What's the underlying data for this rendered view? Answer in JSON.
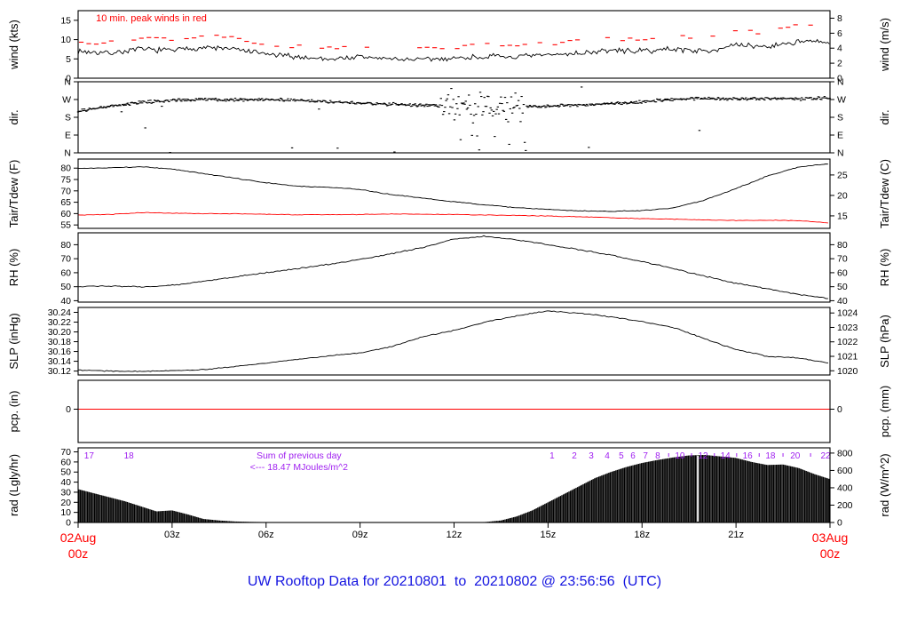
{
  "title": "UW Rooftop Data for 20210801  to  20210802 @ 23:56:56  (UTC)",
  "colors": {
    "line": "#000000",
    "red": "#ff0000",
    "purple": "#a020f0",
    "title_blue": "#1414e0",
    "gap_line": "#ffffff"
  },
  "chart_data": {
    "type": "line",
    "description": "Multi-panel meteogram, x axis = hours UTC from 02Aug 00z to 03Aug 00z",
    "x_axis": {
      "range_hours": [
        0,
        24
      ],
      "ticks": [
        {
          "t": 0,
          "lines": [
            "02Aug",
            "00z"
          ],
          "color": "#ff0000"
        },
        {
          "t": 3,
          "lines": [
            "03z"
          ]
        },
        {
          "t": 6,
          "lines": [
            "06z"
          ]
        },
        {
          "t": 9,
          "lines": [
            "09z"
          ]
        },
        {
          "t": 12,
          "lines": [
            "12z"
          ]
        },
        {
          "t": 15,
          "lines": [
            "15z"
          ]
        },
        {
          "t": 18,
          "lines": [
            "18z"
          ]
        },
        {
          "t": 21,
          "lines": [
            "21z"
          ]
        },
        {
          "t": 24,
          "lines": [
            "03Aug",
            "00z"
          ],
          "color": "#ff0000"
        }
      ]
    },
    "panels": [
      {
        "id": "wind",
        "label_left": "wind (kts)",
        "label_right": "wind (m/s)",
        "ylim": [
          0,
          17.5
        ],
        "yticks_left": [
          {
            "v": 0,
            "label": "0"
          },
          {
            "v": 5,
            "label": "5"
          },
          {
            "v": 10,
            "label": "10"
          },
          {
            "v": 15,
            "label": "15"
          }
        ],
        "yticks_right": [
          {
            "v": 0,
            "label": "0"
          },
          {
            "v": 3.89,
            "label": "2"
          },
          {
            "v": 7.78,
            "label": "4"
          },
          {
            "v": 11.66,
            "label": "6"
          },
          {
            "v": 15.55,
            "label": "8"
          }
        ],
        "annotation": {
          "text": "10 min. peak winds in red",
          "color": "#ff0000",
          "t": 0.57
        },
        "series": [
          {
            "name": "wind_speed_kts",
            "type": "noisy-line",
            "color": "#000000",
            "width": 0.9,
            "seed": 7,
            "noise": 0.85,
            "sample": 0.055,
            "dt": 1,
            "values": [
              7.0,
              6.5,
              7.5,
              7.2,
              8.0,
              7.5,
              6.2,
              5.5,
              5.0,
              5.5,
              5.0,
              4.8,
              5.2,
              5.6,
              5.5,
              6.0,
              6.5,
              7.2,
              7.0,
              7.6,
              7.0,
              8.5,
              8.2,
              9.5,
              9.2
            ]
          },
          {
            "name": "peak_wind_kts",
            "type": "dash-scatter",
            "color": "#ff0000",
            "seed": 13,
            "noise": 0.5,
            "sample": 0.24,
            "prob": 0.62,
            "dt": 1,
            "values": [
              9.5,
              9.2,
              10.5,
              10.2,
              11.2,
              10.5,
              8.8,
              8.2,
              7.8,
              8.2,
              7.8,
              7.6,
              8.0,
              8.6,
              8.5,
              9.0,
              9.6,
              10.2,
              10.0,
              10.8,
              10.5,
              12.0,
              11.8,
              13.8,
              13.0
            ]
          }
        ]
      },
      {
        "id": "dir",
        "label_left": "dir.",
        "label_right": "dir.",
        "ylim": [
          0,
          360
        ],
        "yticks_left": [
          {
            "v": 360,
            "label": "N"
          },
          {
            "v": 270,
            "label": "W"
          },
          {
            "v": 180,
            "label": "S"
          },
          {
            "v": 90,
            "label": "E"
          },
          {
            "v": 0,
            "label": "N"
          }
        ],
        "yticks_right": [
          {
            "v": 360,
            "label": "N"
          },
          {
            "v": 270,
            "label": "W"
          },
          {
            "v": 180,
            "label": "S"
          },
          {
            "v": 90,
            "label": "E"
          },
          {
            "v": 0,
            "label": "N"
          }
        ],
        "series": [
          {
            "name": "wind_direction_deg",
            "type": "point-scatter",
            "color": "#000000",
            "seed": 29,
            "noise": 9,
            "sample": 0.033,
            "outlier_prob": 0.02,
            "dt": 1,
            "windows": [
              {
                "t0": 11.55,
                "t1": 14.35,
                "noise": 80,
                "outlier_prob": 0.28
              }
            ],
            "values": [
              212,
              235,
              255,
              266,
              270,
              268,
              271,
              266,
              258,
              252,
              246,
              240,
              236,
              238,
              232,
              236,
              242,
              247,
              258,
              272,
              277,
              272,
              275,
              272,
              279
            ]
          }
        ]
      },
      {
        "id": "tair_tdew",
        "label_left": "Tair/Tdew (F)",
        "label_right": "Tair/Tdew (C)",
        "ylim": [
          53.5,
          84
        ],
        "yticks_left": [
          {
            "v": 55,
            "label": "55"
          },
          {
            "v": 60,
            "label": "60"
          },
          {
            "v": 65,
            "label": "65"
          },
          {
            "v": 70,
            "label": "70"
          },
          {
            "v": 75,
            "label": "75"
          },
          {
            "v": 80,
            "label": "80"
          }
        ],
        "yticks_right": [
          {
            "v": 59,
            "label": "15"
          },
          {
            "v": 68,
            "label": "20"
          },
          {
            "v": 77,
            "label": "25"
          }
        ],
        "series": [
          {
            "name": "tair_f",
            "type": "noisy-line",
            "color": "#000000",
            "width": 0.9,
            "seed": 41,
            "noise": 0.22,
            "sample": 0.07,
            "dt": 1,
            "values": [
              79.8,
              80.2,
              80.6,
              79.6,
              77.6,
              75.6,
              73.6,
              72.0,
              71.6,
              70.6,
              68.4,
              66.8,
              65.2,
              63.8,
              62.6,
              61.8,
              61.2,
              61.0,
              61.3,
              62.5,
              66.0,
              71.0,
              76.5,
              80.5,
              82.0
            ]
          },
          {
            "name": "tdew_f",
            "type": "noisy-line",
            "color": "#ff0000",
            "width": 0.9,
            "seed": 43,
            "noise": 0.16,
            "sample": 0.07,
            "dt": 1,
            "values": [
              59.4,
              59.6,
              60.4,
              60.2,
              60.0,
              59.9,
              59.7,
              59.5,
              59.5,
              59.6,
              59.8,
              59.7,
              59.6,
              59.4,
              59.2,
              58.9,
              58.6,
              58.2,
              57.8,
              57.5,
              57.2,
              57.0,
              57.1,
              56.9,
              55.9
            ]
          }
        ]
      },
      {
        "id": "rh",
        "label_left": "RH (%)",
        "label_right": "RH (%)",
        "ylim": [
          39,
          88.5
        ],
        "yticks_left": [
          {
            "v": 40,
            "label": "40"
          },
          {
            "v": 50,
            "label": "50"
          },
          {
            "v": 60,
            "label": "60"
          },
          {
            "v": 70,
            "label": "70"
          },
          {
            "v": 80,
            "label": "80"
          }
        ],
        "yticks_right": [
          {
            "v": 40,
            "label": "40"
          },
          {
            "v": 50,
            "label": "50"
          },
          {
            "v": 60,
            "label": "60"
          },
          {
            "v": 70,
            "label": "70"
          },
          {
            "v": 80,
            "label": "80"
          }
        ],
        "series": [
          {
            "name": "relative_humidity_pct",
            "type": "noisy-line",
            "color": "#000000",
            "width": 0.9,
            "seed": 53,
            "noise": 0.5,
            "sample": 0.07,
            "dt": 1,
            "values": [
              50,
              50.5,
              49.8,
              51,
              54,
              57,
              60,
              63,
              66,
              69.5,
              73.5,
              78,
              84,
              86,
              83.5,
              80,
              76.5,
              72.5,
              68,
              63,
              57.5,
              52.5,
              48.5,
              44.5,
              41.5
            ]
          }
        ]
      },
      {
        "id": "slp",
        "label_left": "SLP (inHg)",
        "label_right": "SLP (hPa)",
        "ylim": [
          30.112,
          30.25
        ],
        "yticks_left": [
          {
            "v": 30.12,
            "label": "30.12"
          },
          {
            "v": 30.14,
            "label": "30.14"
          },
          {
            "v": 30.16,
            "label": "30.16"
          },
          {
            "v": 30.18,
            "label": "30.18"
          },
          {
            "v": 30.2,
            "label": "30.20"
          },
          {
            "v": 30.22,
            "label": "30.22"
          },
          {
            "v": 30.24,
            "label": "30.24"
          }
        ],
        "yticks_right": [
          {
            "v": 30.1206,
            "label": "1020"
          },
          {
            "v": 30.1501,
            "label": "1021"
          },
          {
            "v": 30.1797,
            "label": "1022"
          },
          {
            "v": 30.2092,
            "label": "1023"
          },
          {
            "v": 30.2387,
            "label": "1024"
          }
        ],
        "series": [
          {
            "name": "sea_level_pressure_inhg",
            "type": "noisy-line",
            "color": "#000000",
            "width": 0.9,
            "seed": 61,
            "noise": 0.0012,
            "sample": 0.07,
            "dt": 1,
            "values": [
              30.122,
              30.12,
              30.119,
              30.121,
              30.123,
              30.129,
              30.136,
              30.144,
              30.151,
              30.157,
              30.17,
              30.19,
              30.203,
              30.22,
              30.233,
              30.243,
              30.238,
              30.231,
              30.221,
              30.209,
              30.186,
              30.164,
              30.15,
              30.147,
              30.136
            ]
          }
        ]
      },
      {
        "id": "pcp",
        "label_left": "pcp. (in)",
        "label_right": "pcp. (mm)",
        "ylim": [
          -0.75,
          0.65
        ],
        "yticks_left": [
          {
            "v": 0,
            "label": "0"
          }
        ],
        "yticks_right": [
          {
            "v": 0,
            "label": "0"
          }
        ],
        "series": [
          {
            "name": "precipitation",
            "type": "flat-line",
            "color": "#ff0000",
            "value": 0
          }
        ]
      },
      {
        "id": "rad",
        "label_left": "rad (Lgly/hr)",
        "label_right": "rad (W/m^2)",
        "ylim": [
          0,
          74
        ],
        "yticks_left": [
          {
            "v": 0,
            "label": "0"
          },
          {
            "v": 10,
            "label": "10"
          },
          {
            "v": 20,
            "label": "20"
          },
          {
            "v": 30,
            "label": "30"
          },
          {
            "v": 40,
            "label": "40"
          },
          {
            "v": 50,
            "label": "50"
          },
          {
            "v": 60,
            "label": "60"
          },
          {
            "v": 70,
            "label": "70"
          }
        ],
        "yticks_right": [
          {
            "v": 0,
            "label": "0"
          },
          {
            "v": 17.2,
            "label": "200"
          },
          {
            "v": 34.4,
            "label": "400"
          },
          {
            "v": 51.6,
            "label": "600"
          },
          {
            "v": 68.8,
            "label": "800"
          }
        ],
        "gap_line_t": 19.78,
        "annotation_lines": [
          "Sum of previous day",
          "<--- 18.47 MJoules/m^2"
        ],
        "annotation_t": 7.05,
        "purple_marks": [
          {
            "t": 0.35,
            "label": "17"
          },
          {
            "t": 1.62,
            "label": "18"
          },
          {
            "t": 15.13,
            "label": "1"
          },
          {
            "t": 15.84,
            "label": "2"
          },
          {
            "t": 16.38,
            "label": "3"
          },
          {
            "t": 16.89,
            "label": "4"
          },
          {
            "t": 17.34,
            "label": "5"
          },
          {
            "t": 17.71,
            "label": "6"
          },
          {
            "t": 18.11,
            "label": "7"
          },
          {
            "t": 18.5,
            "label": "8"
          },
          {
            "t": 19.21,
            "label": "10"
          },
          {
            "t": 19.95,
            "label": "12"
          },
          {
            "t": 20.66,
            "label": "14"
          },
          {
            "t": 21.37,
            "label": "16"
          },
          {
            "t": 22.1,
            "label": "18"
          },
          {
            "t": 22.89,
            "label": "20"
          },
          {
            "t": 23.86,
            "label": "22"
          }
        ],
        "purple_minor_marks": [
          18.85,
          19.58,
          20.31,
          21.02,
          21.74,
          22.5,
          23.38
        ],
        "series": [
          {
            "name": "solar_radiation_lyhr",
            "type": "area",
            "color": "#000000",
            "dt": 0.5,
            "values": [
              33,
              29,
              25,
              21,
              16,
              11,
              12,
              8,
              3.5,
              2,
              1,
              0.6,
              0.4,
              0.2,
              0.1,
              0.1,
              0,
              0,
              0,
              0,
              0,
              0,
              0,
              0,
              0.1,
              0.2,
              0.5,
              2,
              6,
              12,
              20,
              28,
              36,
              44,
              50,
              55,
              59,
              62,
              64.5,
              66.5,
              67,
              65.5,
              64,
              60,
              57,
              57.5,
              54,
              48,
              43
            ]
          }
        ]
      }
    ]
  }
}
